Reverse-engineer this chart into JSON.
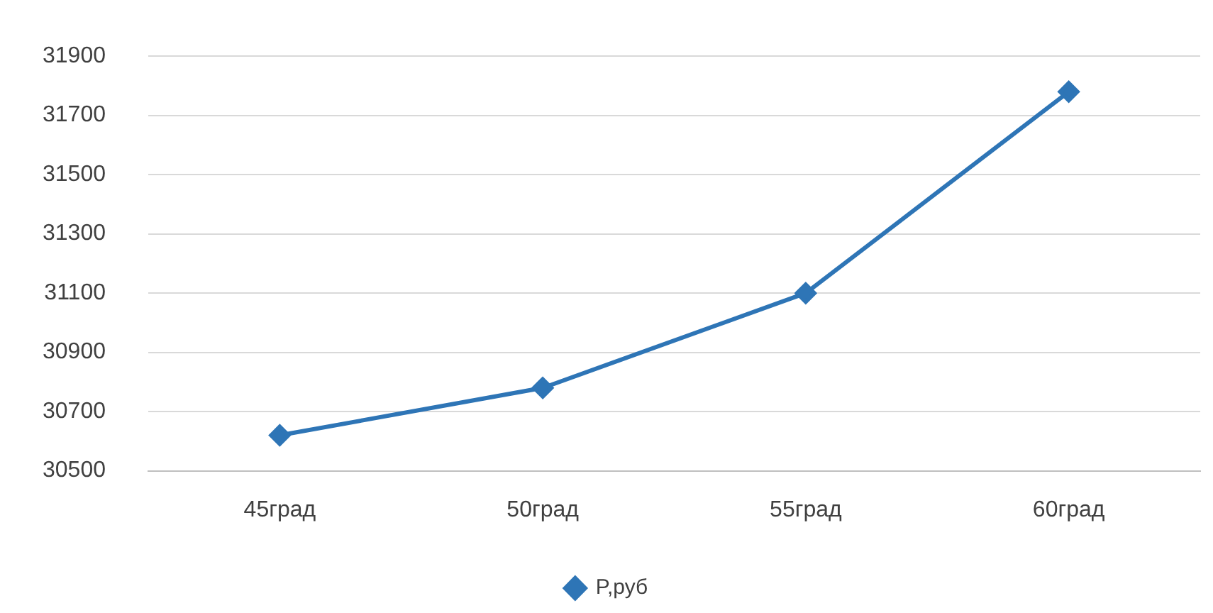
{
  "chart_data": {
    "type": "line",
    "categories": [
      "45град",
      "50град",
      "55град",
      "60град"
    ],
    "series": [
      {
        "name": "P,руб",
        "color": "#2e75b6",
        "values": [
          30620,
          30780,
          31100,
          31780
        ]
      }
    ],
    "ylim": [
      30500,
      31900
    ],
    "yticks": [
      30500,
      30700,
      30900,
      31100,
      31300,
      31500,
      31700,
      31900
    ],
    "grid": "y",
    "legend": "bottom",
    "marker": "diamond",
    "line_style": "solid"
  }
}
